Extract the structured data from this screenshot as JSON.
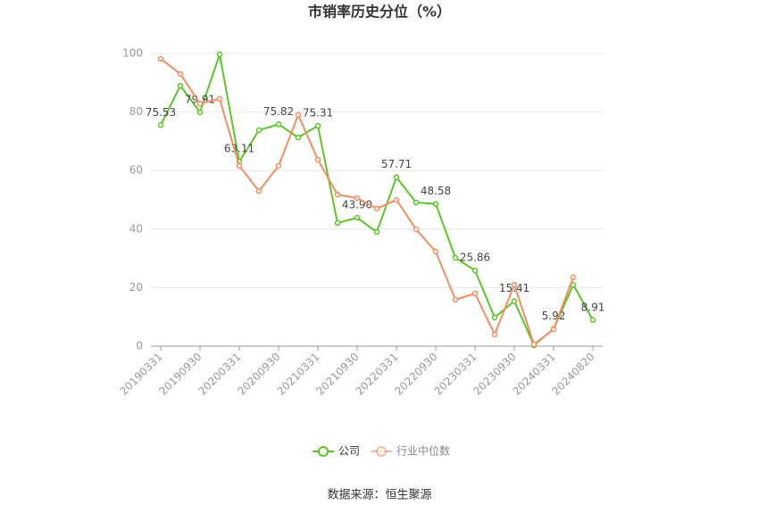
{
  "chart_data": {
    "type": "line",
    "title": "市销率历史分位（%）",
    "categories": [
      "20190331",
      null,
      "20190930",
      null,
      "20200331",
      null,
      "20200930",
      null,
      "20210331",
      null,
      "20210930",
      null,
      "20220331",
      null,
      "20220930",
      null,
      "20230331",
      null,
      "20230930",
      null,
      "20240331",
      null,
      "20240820"
    ],
    "series": [
      {
        "name": "公司",
        "color": "#5ac626",
        "values": [
          75.53,
          89.0,
          79.91,
          99.7,
          63.11,
          73.8,
          75.82,
          71.3,
          75.31,
          42.1,
          43.9,
          39.0,
          57.71,
          49.1,
          48.58,
          30.2,
          25.86,
          9.8,
          15.41,
          0.3,
          5.92,
          21.0,
          8.91
        ],
        "value_labels": [
          "75.53",
          null,
          "79.91",
          null,
          "63.11",
          null,
          "75.82",
          null,
          "75.31",
          null,
          "43.90",
          null,
          "57.71",
          null,
          "48.58",
          null,
          "25.86",
          null,
          "15.41",
          null,
          "5.92",
          null,
          "8.91"
        ]
      },
      {
        "name": "行业中位数",
        "color": "#f28c62",
        "values": [
          98.2,
          93.0,
          82.9,
          84.5,
          61.6,
          53.0,
          61.6,
          79.0,
          63.7,
          51.8,
          50.6,
          47.0,
          50.0,
          39.9,
          32.3,
          15.9,
          18.0,
          4.0,
          21.0,
          0.6,
          5.8,
          23.5,
          null
        ]
      }
    ],
    "ylim": [
      0,
      100
    ],
    "yticks": [
      0,
      20,
      40,
      60,
      80,
      100
    ],
    "grid": true,
    "legend": "bottom",
    "source": "数据来源：恒生聚源"
  }
}
